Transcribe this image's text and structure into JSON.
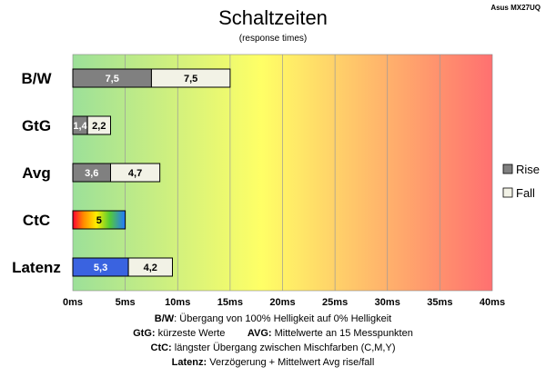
{
  "chart_data": {
    "type": "bar",
    "orientation": "horizontal",
    "stacked": true,
    "title": "Schaltzeiten",
    "subtitle": "(response times)",
    "model": "Asus MX27UQ",
    "categories": [
      "B/W",
      "GtG",
      "Avg",
      "CtC",
      "Latenz"
    ],
    "series": [
      {
        "name": "Rise",
        "values": [
          7.5,
          1.4,
          3.6,
          5,
          5.3
        ],
        "labels": [
          "7,5",
          "1,4",
          "3,6",
          "5",
          "5,3"
        ]
      },
      {
        "name": "Fall",
        "values": [
          7.5,
          2.2,
          4.7,
          null,
          4.2
        ],
        "labels": [
          "7,5",
          "2,2",
          "4,7",
          "",
          "4,2"
        ]
      }
    ],
    "xlim": [
      0,
      40
    ],
    "xticks": [
      "0ms",
      "5ms",
      "10ms",
      "15ms",
      "20ms",
      "25ms",
      "30ms",
      "35ms",
      "40ms"
    ],
    "grid": true,
    "legend": "right",
    "colors": {
      "rise": "#808080",
      "fall": "#f2f2e6",
      "latenz_rise": "#3a63e0",
      "background_gradient": [
        "#9ce099",
        "#ffff66",
        "#ff7070"
      ]
    }
  },
  "notes": {
    "line1": {
      "key": "B/W",
      "text": ":  Übergang von 100% Helligkeit auf 0% Helligkeit"
    },
    "line2": {
      "key1": "GtG:",
      "text1": " kürzeste  Werte",
      "key2": "AVG:",
      "text2": " Mittelwerte  an 15 Messpunkten"
    },
    "line3": {
      "key": "CtC:",
      "text": " längster Übergang  zwischen Mischfarben  (C,M,Y)"
    },
    "line4": {
      "key": "Latenz:",
      "text": " Verzögerung  + Mittelwert Avg rise/fall"
    }
  }
}
